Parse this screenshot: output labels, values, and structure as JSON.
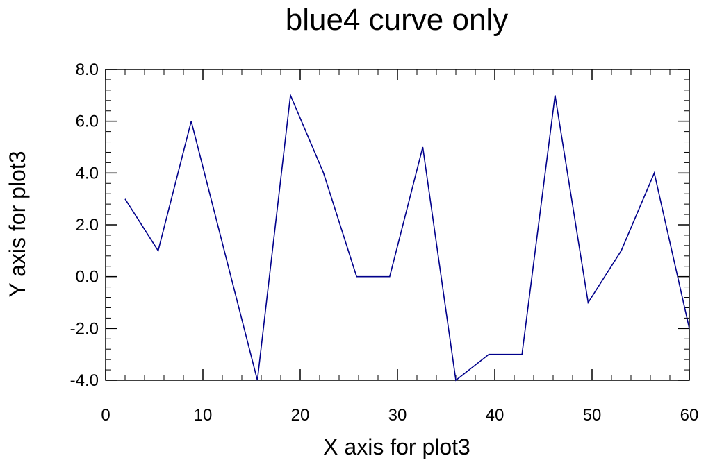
{
  "chart_data": {
    "type": "line",
    "title": "blue4 curve only",
    "xlabel": "X axis for plot3",
    "ylabel": "Y axis for plot3",
    "xlim": [
      0,
      60
    ],
    "ylim": [
      -4,
      8
    ],
    "x_ticks": [
      0,
      10,
      20,
      30,
      40,
      50,
      60
    ],
    "x_tick_labels": [
      "0",
      "10",
      "20",
      "30",
      "40",
      "50",
      "60"
    ],
    "y_ticks": [
      -4,
      -2,
      0,
      2,
      4,
      6,
      8
    ],
    "y_tick_labels": [
      "-4.0",
      "-2.0",
      "0.0",
      "2.0",
      "4.0",
      "6.0",
      "8.0"
    ],
    "x_minor_step": 2,
    "y_minor_step": 0.4,
    "grid": false,
    "legend": "none",
    "series": [
      {
        "color": "#00008b",
        "x": [
          2,
          5.4,
          8.8,
          12.2,
          15.6,
          19,
          22.4,
          25.8,
          29.2,
          32.6,
          36,
          39.4,
          42.8,
          46.2,
          49.6,
          53,
          56.4,
          60
        ],
        "y": [
          3,
          1,
          6,
          1,
          -4,
          7,
          4,
          0,
          0,
          5,
          -4,
          -3,
          -3,
          7,
          -1,
          1,
          4,
          -2
        ]
      }
    ]
  }
}
